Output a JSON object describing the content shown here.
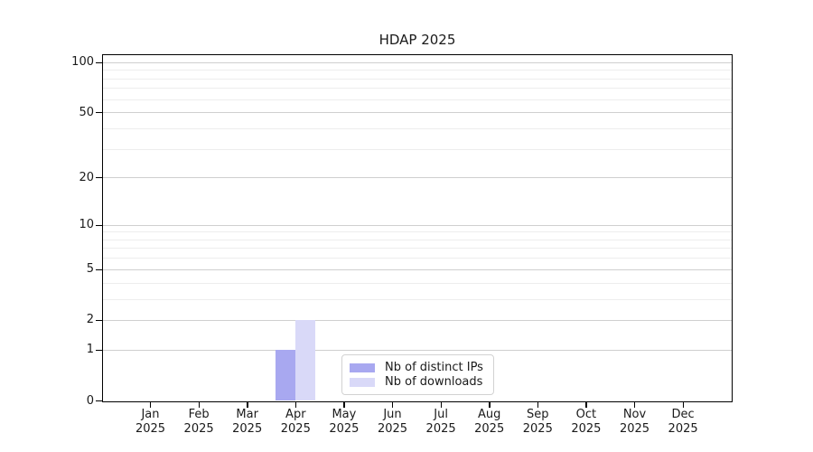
{
  "chart_data": {
    "type": "bar",
    "title": "HDAP 2025",
    "x_axis": {
      "categories": [
        "Jan",
        "Feb",
        "Mar",
        "Apr",
        "May",
        "Jun",
        "Jul",
        "Aug",
        "Sep",
        "Oct",
        "Nov",
        "Dec"
      ],
      "year": "2025"
    },
    "y_axis": {
      "scale": "symlog",
      "ticks": [
        0,
        1,
        2,
        5,
        10,
        20,
        50,
        100
      ],
      "minor_ticks": [
        3,
        4,
        6,
        7,
        8,
        9,
        30,
        40,
        60,
        70,
        80,
        90
      ],
      "max": 110
    },
    "series": [
      {
        "name": "Nb of distinct IPs",
        "color": "#a8a8f0",
        "values": [
          0,
          0,
          0,
          1,
          0,
          0,
          0,
          0,
          0,
          0,
          0,
          0
        ]
      },
      {
        "name": "Nb of downloads",
        "color": "#d9d9f8",
        "values": [
          0,
          0,
          0,
          2,
          0,
          0,
          0,
          0,
          0,
          0,
          0,
          0
        ]
      }
    ],
    "legend": {
      "position": "inside-bottom-center"
    },
    "grid": {
      "horizontal": true,
      "vertical": false
    },
    "colors": {
      "grid_major": "#cfcfcf",
      "grid_minor": "#ededed",
      "axis": "#000000",
      "text": "#1a1a1a",
      "background": "#ffffff"
    }
  }
}
